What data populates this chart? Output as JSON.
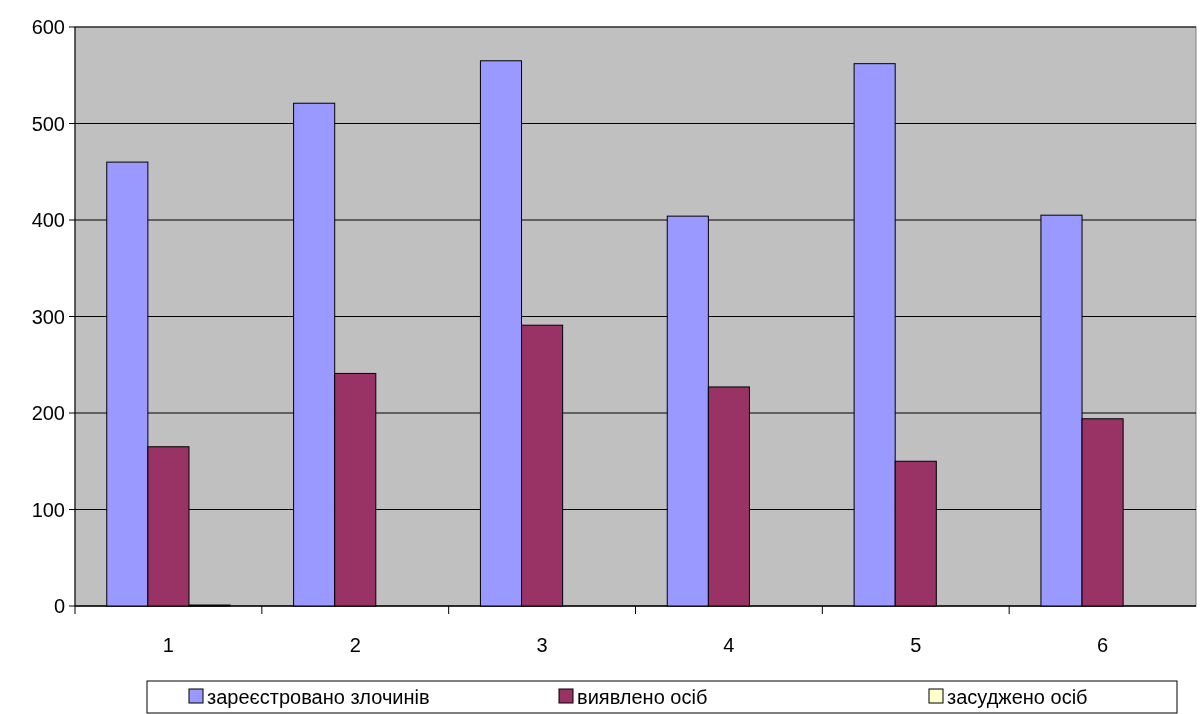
{
  "chart_data": {
    "type": "bar",
    "categories": [
      "1",
      "2",
      "3",
      "4",
      "5",
      "6"
    ],
    "series": [
      {
        "name": "зареєстровано злочинів",
        "color": "#9999ff",
        "values": [
          460,
          521,
          565,
          404,
          562,
          405
        ]
      },
      {
        "name": "виявлено осіб",
        "color": "#993366",
        "values": [
          165,
          241,
          291,
          227,
          150,
          194
        ]
      },
      {
        "name": "засуджено осіб",
        "color": "#ffffcc",
        "values": [
          1,
          0,
          0,
          0,
          0,
          0
        ]
      }
    ],
    "ylim": [
      0,
      600
    ],
    "yticks": [
      0,
      100,
      200,
      300,
      400,
      500,
      600
    ],
    "grid": "y",
    "legend": "bottom"
  }
}
